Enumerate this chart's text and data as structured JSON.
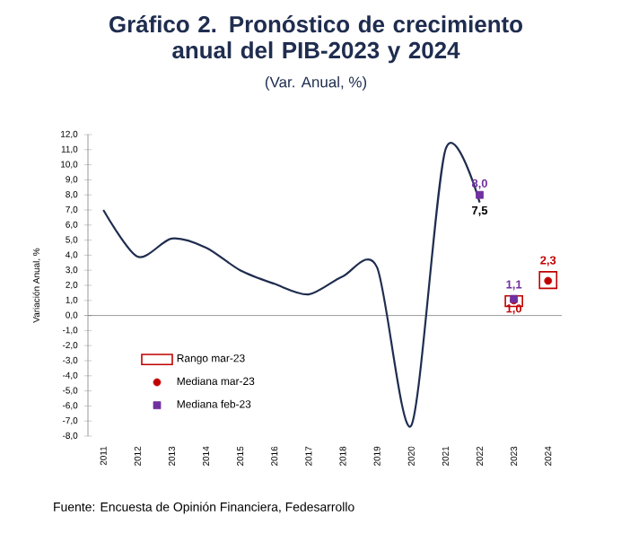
{
  "chart_data": {
    "type": "line",
    "title": "Gráfico 2. Pronóstico de crecimiento anual del PIB-2023 y 2024",
    "subtitle": "(Var. Anual, %)",
    "ylabel": "Variación Anual, %",
    "categories": [
      "2011",
      "2012",
      "2013",
      "2014",
      "2015",
      "2016",
      "2017",
      "2018",
      "2019",
      "2020",
      "2021",
      "2022",
      "2023",
      "2024"
    ],
    "series": [
      {
        "color": "#1f2d4f",
        "marker": "none",
        "values": [
          7.0,
          3.9,
          5.1,
          4.5,
          3.0,
          2.1,
          1.4,
          2.6,
          3.2,
          -7.3,
          11.0,
          7.5,
          null,
          null
        ],
        "value_labels": [
          null,
          null,
          null,
          null,
          null,
          null,
          null,
          null,
          null,
          null,
          null,
          "7,5",
          null,
          null
        ]
      },
      {
        "type": "bar",
        "name": "Rango mar-23",
        "color": "#c00000",
        "values": [
          null,
          null,
          null,
          null,
          null,
          null,
          null,
          null,
          null,
          null,
          null,
          null,
          0.7,
          1.1
        ],
        "base": [
          null,
          null,
          null,
          null,
          null,
          null,
          null,
          null,
          null,
          null,
          null,
          null,
          0.6,
          1.8
        ]
      },
      {
        "type": "scatter",
        "name": "Mediana mar-23",
        "color": "#c00000",
        "marker": "circle",
        "values": [
          null,
          null,
          null,
          null,
          null,
          null,
          null,
          null,
          null,
          null,
          null,
          null,
          1.0,
          2.3
        ],
        "value_labels": [
          null,
          null,
          null,
          null,
          null,
          null,
          null,
          null,
          null,
          null,
          null,
          null,
          "1,0",
          "2,3"
        ]
      },
      {
        "type": "scatter",
        "name": "Mediana feb-23",
        "color": "#7030a0",
        "marker": "square",
        "values": [
          null,
          null,
          null,
          null,
          null,
          null,
          null,
          null,
          null,
          null,
          null,
          8.0,
          1.1,
          null
        ],
        "value_labels": [
          null,
          null,
          null,
          null,
          null,
          null,
          null,
          null,
          null,
          null,
          null,
          "8,0",
          "1,1",
          null
        ]
      }
    ],
    "ylim": [
      -8,
      12
    ],
    "yticks": [
      {
        "value": -8,
        "label": "-8,0"
      },
      {
        "value": -7,
        "label": "-7,0"
      },
      {
        "value": -6,
        "label": "-6,0"
      },
      {
        "value": -5,
        "label": "-5,0"
      },
      {
        "value": -4,
        "label": "-4,0"
      },
      {
        "value": -3,
        "label": "-3,0"
      },
      {
        "value": -2,
        "label": "-2,0"
      },
      {
        "value": -1,
        "label": "-1,0"
      },
      {
        "value": 0,
        "label": "0,0"
      },
      {
        "value": 1,
        "label": "1,0"
      },
      {
        "value": 2,
        "label": "2,0"
      },
      {
        "value": 3,
        "label": "3,0"
      },
      {
        "value": 4,
        "label": "4,0"
      },
      {
        "value": 5,
        "label": "5,0"
      },
      {
        "value": 6,
        "label": "6,0"
      },
      {
        "value": 7,
        "label": "7,0"
      },
      {
        "value": 8,
        "label": "8,0"
      },
      {
        "value": 9,
        "label": "9,0"
      },
      {
        "value": 10,
        "label": "10,0"
      },
      {
        "value": 11,
        "label": "11,0"
      },
      {
        "value": 12,
        "label": "12,0"
      }
    ],
    "legend": "bottom left",
    "annotations": [
      "Fuente: Encuesta de Opinión Financiera, Fedesarrollo"
    ]
  }
}
